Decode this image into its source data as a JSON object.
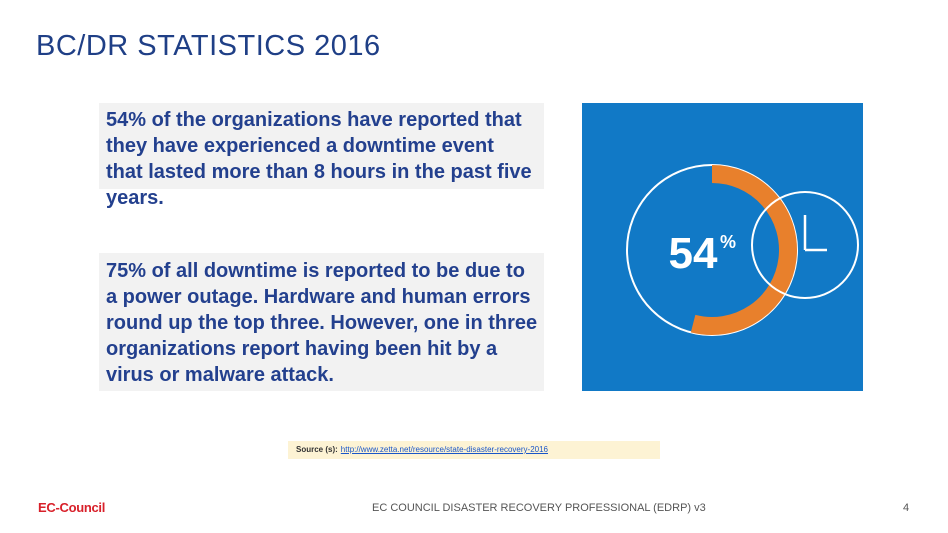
{
  "slide": {
    "title": "BC/DR STATISTICS 2016",
    "stat1": "54% of the organizations have reported that they have experienced a downtime event that lasted more than 8 hours in the past five years.",
    "stat2": "75% of all downtime is reported to be due to a power outage. Hardware and human errors round up the top three. However, one in three organizations report having been hit by a virus or malware attack.",
    "graphic": {
      "value": "54",
      "unit": "%",
      "fraction": 0.54,
      "background_color": "#1179c6",
      "arc_color": "#e8802c",
      "icon": "clock-icon"
    },
    "source": {
      "label": "Source (s):",
      "url": "http://www.zetta.net/resource/state-disaster-recovery-2016"
    }
  },
  "footer": {
    "brand": "EC-Council",
    "text": "EC COUNCIL DISASTER RECOVERY PROFESSIONAL (EDRP) v3",
    "page": "4"
  }
}
